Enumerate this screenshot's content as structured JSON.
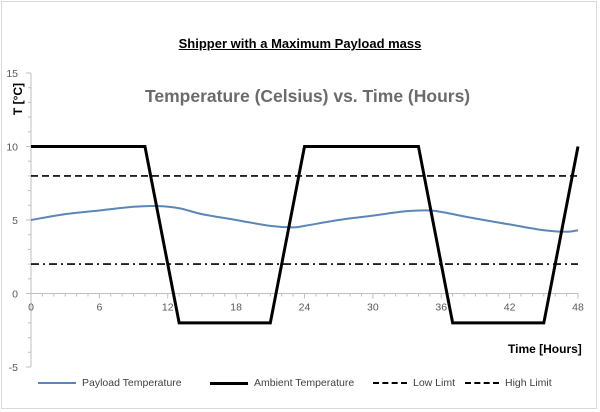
{
  "chart_data": {
    "type": "line",
    "title": "Shipper with a Maximum Payload mass",
    "subtitle": "Temperature (Celsius) vs. Time (Hours)",
    "xlabel": "Time [Hours]",
    "ylabel": "T [°C]",
    "xlim": [
      0,
      48
    ],
    "ylim": [
      -5,
      15
    ],
    "x_ticks": [
      0,
      6,
      12,
      18,
      24,
      30,
      36,
      42,
      48
    ],
    "y_ticks": [
      -5,
      0,
      5,
      10,
      15
    ],
    "grid": false,
    "legend_position": "bottom",
    "series": [
      {
        "name": "Payload Temperature",
        "color": "#5b87b8",
        "style": "solid",
        "x": [
          0,
          3,
          6,
          9,
          11,
          13,
          15,
          18,
          21,
          23,
          24,
          27,
          30,
          33,
          35,
          36,
          39,
          42,
          45,
          47,
          48
        ],
        "y": [
          5.0,
          5.4,
          5.65,
          5.9,
          5.95,
          5.8,
          5.4,
          5.0,
          4.6,
          4.5,
          4.6,
          5.0,
          5.3,
          5.6,
          5.65,
          5.55,
          5.1,
          4.7,
          4.3,
          4.2,
          4.3
        ]
      },
      {
        "name": "Ambient Temperature",
        "color": "#000000",
        "style": "solid",
        "x": [
          0,
          10,
          13,
          21,
          24,
          34,
          37,
          45,
          48
        ],
        "y": [
          10,
          10,
          -2,
          -2,
          10,
          10,
          -2,
          -2,
          10
        ]
      },
      {
        "name": "Low Limt",
        "color": "#000000",
        "style": "dash-dot",
        "x": [
          0,
          48
        ],
        "y": [
          2,
          2
        ]
      },
      {
        "name": "High Limit",
        "color": "#000000",
        "style": "dashed",
        "x": [
          0,
          48
        ],
        "y": [
          8,
          8
        ]
      }
    ]
  }
}
